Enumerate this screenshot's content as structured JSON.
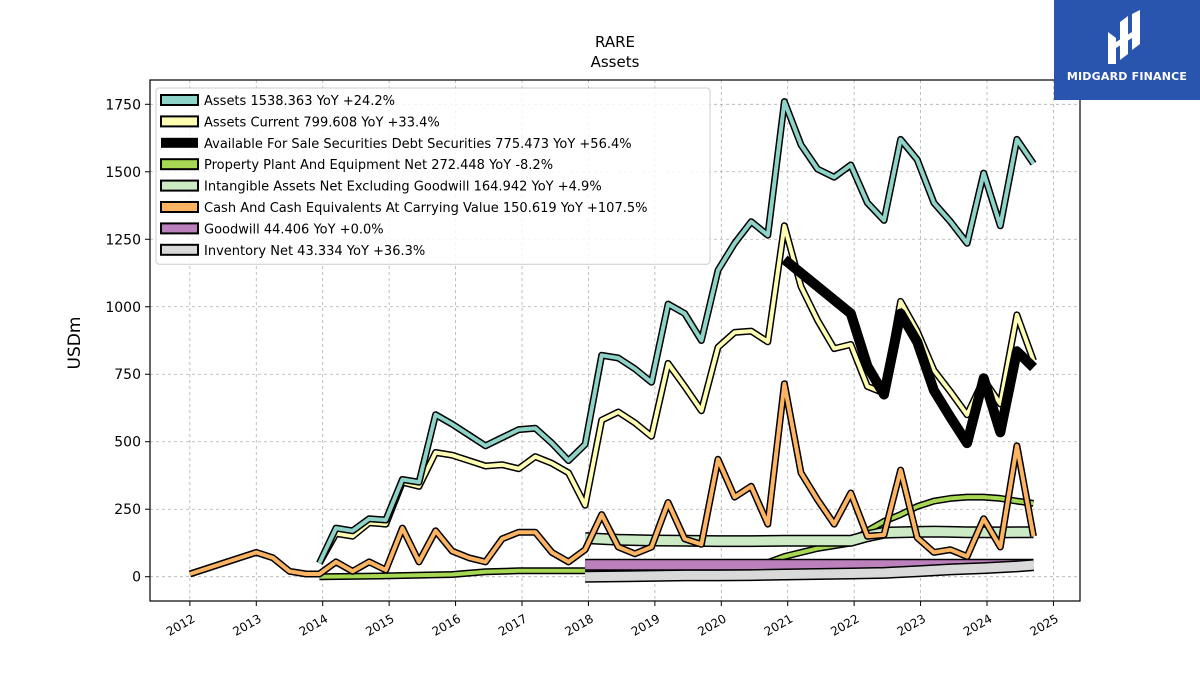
{
  "logo": {
    "text": "MIDGARD FINANCE",
    "icon": "midgard-logo-icon"
  },
  "chart_data": {
    "type": "line",
    "title": "RARE",
    "subtitle": "Assets",
    "xlabel": "",
    "ylabel": "USDm",
    "xlim": [
      2011.4,
      2025.4
    ],
    "ylim": [
      -90,
      1840
    ],
    "yticks": [
      0,
      250,
      500,
      750,
      1000,
      1250,
      1500,
      1750
    ],
    "xticks": [
      2012,
      2013,
      2014,
      2015,
      2016,
      2017,
      2018,
      2019,
      2020,
      2021,
      2022,
      2023,
      2024,
      2025
    ],
    "grid": true,
    "legend_position": "top-left",
    "series": [
      {
        "name": "Assets  1538.363 YoY +24.2%",
        "color": "#8dd3c7",
        "width": 4,
        "x": [
          2013.95,
          2014.2,
          2014.45,
          2014.7,
          2014.95,
          2015.2,
          2015.45,
          2015.7,
          2015.95,
          2016.2,
          2016.45,
          2016.7,
          2016.95,
          2017.2,
          2017.45,
          2017.7,
          2017.95,
          2018.2,
          2018.45,
          2018.7,
          2018.95,
          2019.2,
          2019.45,
          2019.7,
          2019.95,
          2020.2,
          2020.45,
          2020.7,
          2020.95,
          2021.2,
          2021.45,
          2021.7,
          2021.95,
          2022.2,
          2022.45,
          2022.7,
          2022.95,
          2023.2,
          2023.45,
          2023.7,
          2023.95,
          2024.2,
          2024.45,
          2024.7
        ],
        "y": [
          50,
          180,
          170,
          215,
          210,
          360,
          350,
          600,
          565,
          525,
          485,
          515,
          545,
          550,
          495,
          430,
          490,
          820,
          810,
          770,
          720,
          1010,
          975,
          875,
          1135,
          1235,
          1315,
          1265,
          1760,
          1600,
          1510,
          1480,
          1525,
          1385,
          1320,
          1620,
          1545,
          1385,
          1315,
          1235,
          1495,
          1300,
          1620,
          1530
        ]
      },
      {
        "name": "Assets Current  799.608 YoY +33.4%",
        "color": "#ffffb3",
        "width": 4,
        "x": [
          2013.95,
          2014.2,
          2014.45,
          2014.7,
          2014.95,
          2015.2,
          2015.45,
          2015.7,
          2015.95,
          2016.2,
          2016.45,
          2016.7,
          2016.95,
          2017.2,
          2017.45,
          2017.7,
          2017.95,
          2018.2,
          2018.45,
          2018.7,
          2018.95,
          2019.2,
          2019.45,
          2019.7,
          2019.95,
          2020.2,
          2020.45,
          2020.7,
          2020.95,
          2021.2,
          2021.45,
          2021.7,
          2021.95,
          2022.2,
          2022.45,
          2022.7,
          2022.95,
          2023.2,
          2023.45,
          2023.7,
          2023.95,
          2024.2,
          2024.45,
          2024.7
        ],
        "y": [
          50,
          160,
          150,
          200,
          195,
          350,
          335,
          460,
          450,
          430,
          410,
          415,
          400,
          445,
          420,
          385,
          265,
          580,
          610,
          570,
          520,
          790,
          705,
          615,
          850,
          905,
          910,
          870,
          1300,
          1075,
          950,
          845,
          860,
          705,
          680,
          1020,
          910,
          765,
          685,
          600,
          730,
          640,
          970,
          800
        ]
      },
      {
        "name": "Available For Sale Securities Debt Securities  775.473 YoY +56.4%",
        "color": "#000000",
        "width": 10,
        "x": [
          2020.95,
          2021.95,
          2022.2,
          2022.45,
          2022.7,
          2022.95,
          2023.2,
          2023.45,
          2023.7,
          2023.95,
          2024.2,
          2024.45,
          2024.7
        ],
        "y": [
          1175,
          975,
          780,
          675,
          975,
          870,
          690,
          590,
          495,
          735,
          535,
          835,
          775
        ]
      },
      {
        "name": "Property Plant And Equipment Net  272.448 YoY -8.2%",
        "color": "#a6d854",
        "width": 4,
        "x": [
          2013.95,
          2014.95,
          2015.95,
          2016.45,
          2016.95,
          2017.45,
          2017.95,
          2018.95,
          2019.95,
          2020.45,
          2020.95,
          2021.45,
          2021.95,
          2022.2,
          2022.45,
          2022.7,
          2022.95,
          2023.2,
          2023.45,
          2023.7,
          2023.95,
          2024.2,
          2024.45,
          2024.7
        ],
        "y": [
          0,
          3,
          8,
          18,
          22,
          22,
          22,
          24,
          26,
          30,
          75,
          105,
          125,
          170,
          205,
          230,
          260,
          280,
          290,
          295,
          295,
          290,
          280,
          272
        ]
      },
      {
        "name": "Intangible Assets Net Excluding Goodwill  164.942 YoY +4.9%",
        "color": "#ccebc5",
        "width": 9,
        "x": [
          2017.95,
          2018.45,
          2018.95,
          2019.45,
          2019.95,
          2020.45,
          2020.95,
          2021.45,
          2021.95,
          2022.2,
          2022.45,
          2022.7,
          2022.95,
          2023.2,
          2023.45,
          2023.7,
          2023.95,
          2024.2,
          2024.45,
          2024.7
        ],
        "y": [
          143,
          137,
          134,
          133,
          132,
          132,
          133,
          133,
          133,
          150,
          163,
          165,
          166,
          167,
          166,
          165,
          165,
          164,
          165,
          165
        ]
      },
      {
        "name": "Cash And Cash Equivalents At Carrying Value  150.619 YoY +107.5%",
        "color": "#fdb462",
        "width": 4,
        "x": [
          2012.0,
          2013.0,
          2013.25,
          2013.5,
          2013.75,
          2013.95,
          2014.2,
          2014.45,
          2014.7,
          2014.95,
          2015.2,
          2015.45,
          2015.7,
          2015.95,
          2016.2,
          2016.45,
          2016.7,
          2016.95,
          2017.2,
          2017.45,
          2017.7,
          2017.95,
          2018.2,
          2018.45,
          2018.7,
          2018.95,
          2019.2,
          2019.45,
          2019.7,
          2019.95,
          2020.2,
          2020.45,
          2020.7,
          2020.95,
          2021.2,
          2021.45,
          2021.7,
          2021.95,
          2022.2,
          2022.45,
          2022.7,
          2022.95,
          2023.2,
          2023.45,
          2023.7,
          2023.95,
          2024.2,
          2024.45,
          2024.7
        ],
        "y": [
          10,
          90,
          70,
          20,
          10,
          10,
          55,
          20,
          55,
          25,
          180,
          55,
          170,
          95,
          70,
          55,
          140,
          165,
          165,
          90,
          55,
          100,
          230,
          110,
          85,
          110,
          275,
          140,
          120,
          435,
          295,
          335,
          195,
          715,
          385,
          285,
          195,
          310,
          150,
          155,
          395,
          145,
          90,
          100,
          75,
          215,
          110,
          485,
          150
        ]
      },
      {
        "name": "Goodwill  44.406 YoY +0.0%",
        "color": "#bc80bd",
        "width": 9,
        "x": [
          2017.95,
          2024.7
        ],
        "y": [
          44.4,
          44.4
        ]
      },
      {
        "name": "Inventory Net  43.334 YoY +36.3%",
        "color": "#d9d9d9",
        "width": 9,
        "x": [
          2017.95,
          2018.95,
          2019.45,
          2019.95,
          2020.45,
          2020.95,
          2021.45,
          2021.95,
          2022.45,
          2022.95,
          2023.45,
          2023.95,
          2024.45,
          2024.7
        ],
        "y": [
          0,
          3,
          5,
          5,
          6,
          8,
          10,
          12,
          14,
          20,
          27,
          32,
          38,
          43
        ]
      }
    ]
  }
}
